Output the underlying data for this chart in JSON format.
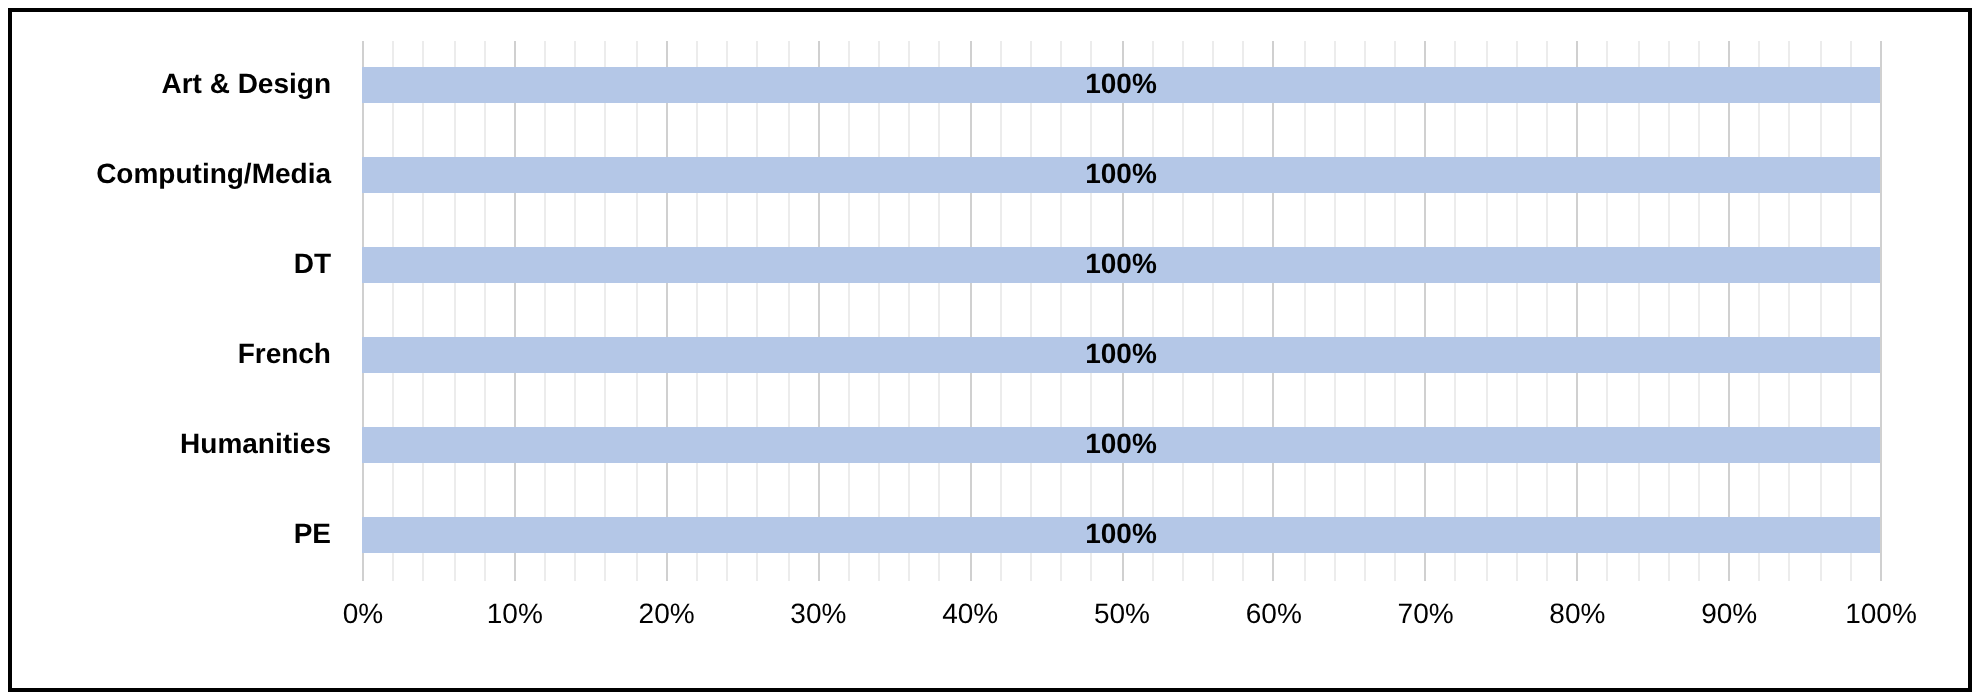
{
  "chart_data": {
    "type": "bar",
    "orientation": "horizontal",
    "categories": [
      "Art & Design",
      "Computing/Media",
      "DT",
      "French",
      "Humanities",
      "PE"
    ],
    "series": [
      {
        "color": "#b4c7e7",
        "values": [
          100,
          100,
          100,
          100,
          100,
          100
        ]
      }
    ],
    "value_labels": [
      "100%",
      "100%",
      "100%",
      "100%",
      "100%",
      "100%"
    ],
    "xlim": [
      0,
      100
    ],
    "xticks": [
      {
        "value": 0,
        "label": "0%"
      },
      {
        "value": 2,
        "label": null
      },
      {
        "value": 4,
        "label": null
      },
      {
        "value": 6,
        "label": null
      },
      {
        "value": 8,
        "label": null
      },
      {
        "value": 10,
        "label": "10%"
      },
      {
        "value": 12,
        "label": null
      },
      {
        "value": 14,
        "label": null
      },
      {
        "value": 16,
        "label": null
      },
      {
        "value": 18,
        "label": null
      },
      {
        "value": 20,
        "label": "20%"
      },
      {
        "value": 22,
        "label": null
      },
      {
        "value": 24,
        "label": null
      },
      {
        "value": 26,
        "label": null
      },
      {
        "value": 28,
        "label": null
      },
      {
        "value": 30,
        "label": "30%"
      },
      {
        "value": 32,
        "label": null
      },
      {
        "value": 34,
        "label": null
      },
      {
        "value": 36,
        "label": null
      },
      {
        "value": 38,
        "label": null
      },
      {
        "value": 40,
        "label": "40%"
      },
      {
        "value": 42,
        "label": null
      },
      {
        "value": 44,
        "label": null
      },
      {
        "value": 46,
        "label": null
      },
      {
        "value": 48,
        "label": null
      },
      {
        "value": 50,
        "label": "50%"
      },
      {
        "value": 52,
        "label": null
      },
      {
        "value": 54,
        "label": null
      },
      {
        "value": 56,
        "label": null
      },
      {
        "value": 58,
        "label": null
      },
      {
        "value": 60,
        "label": "60%"
      },
      {
        "value": 62,
        "label": null
      },
      {
        "value": 64,
        "label": null
      },
      {
        "value": 66,
        "label": null
      },
      {
        "value": 68,
        "label": null
      },
      {
        "value": 70,
        "label": "70%"
      },
      {
        "value": 72,
        "label": null
      },
      {
        "value": 74,
        "label": null
      },
      {
        "value": 76,
        "label": null
      },
      {
        "value": 78,
        "label": null
      },
      {
        "value": 80,
        "label": "80%"
      },
      {
        "value": 82,
        "label": null
      },
      {
        "value": 84,
        "label": null
      },
      {
        "value": 86,
        "label": null
      },
      {
        "value": 88,
        "label": null
      },
      {
        "value": 90,
        "label": "90%"
      },
      {
        "value": 92,
        "label": null
      },
      {
        "value": 94,
        "label": null
      },
      {
        "value": 96,
        "label": null
      },
      {
        "value": 98,
        "label": null
      },
      {
        "value": 100,
        "label": "100%"
      }
    ],
    "grid": "x",
    "legend": false
  }
}
